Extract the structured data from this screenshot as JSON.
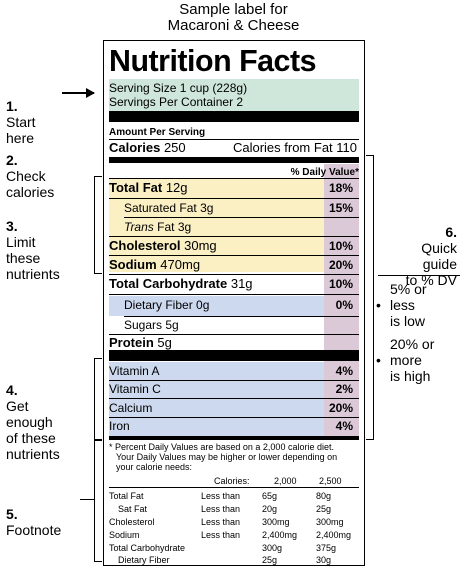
{
  "sample_title": [
    "Sample label for",
    "Macaroni & Cheese"
  ],
  "callouts": {
    "c1": {
      "num": "1.",
      "text": "Start\nhere"
    },
    "c2": {
      "num": "2.",
      "text": "Check\ncalories"
    },
    "c3": {
      "num": "3.",
      "text": "Limit\nthese\nnutrients"
    },
    "c4": {
      "num": "4.",
      "text": "Get\nenough\nof these\nnutrients"
    },
    "c5": {
      "num": "5.",
      "text": "Footnote"
    },
    "c6": {
      "num": "6.",
      "text": "Quick\nguide\nto % DV"
    }
  },
  "quick_guide": [
    {
      "bullet": "•",
      "text": "5% or\nless\nis low"
    },
    {
      "bullet": "•",
      "text": "20% or\nmore\nis high"
    }
  ],
  "label": {
    "title": "Nutrition Facts",
    "serving_size": "Serving Size 1 cup (228g)",
    "servings_per_container": "Servings Per Container 2",
    "amount_per_serving": "Amount Per Serving",
    "calories_label": "Calories",
    "calories_value": "250",
    "calories_from_fat": "Calories from Fat 110",
    "daily_value_header": "% Daily Value*",
    "nutrients": [
      {
        "name": "Total Fat",
        "amount": "12g",
        "dv": "18%"
      },
      {
        "name": "Saturated Fat",
        "amount": "3g",
        "dv": "15%"
      },
      {
        "name": "Trans",
        "amount": "Fat 3g",
        "dv": ""
      },
      {
        "name": "Cholesterol",
        "amount": "30mg",
        "dv": "10%"
      },
      {
        "name": "Sodium",
        "amount": "470mg",
        "dv": "20%"
      },
      {
        "name": "Total Carbohydrate",
        "amount": "31g",
        "dv": "10%"
      },
      {
        "name": "Dietary Fiber",
        "amount": "0g",
        "dv": "0%"
      },
      {
        "name": "Sugars",
        "amount": "5g",
        "dv": ""
      },
      {
        "name": "Protein",
        "amount": "5g",
        "dv": ""
      }
    ],
    "vitamins": [
      {
        "name": "Vitamin A",
        "dv": "4%"
      },
      {
        "name": "Vitamin C",
        "dv": "2%"
      },
      {
        "name": "Calcium",
        "dv": "20%"
      },
      {
        "name": "Iron",
        "dv": "4%"
      }
    ],
    "footnote": [
      "* Percent Daily Values are based on a 2,000 calorie diet.",
      "Your Daily Values may be higher or lower depending on",
      "your calorie needs:"
    ],
    "table_header": {
      "col0": "",
      "col1": "Calories:",
      "col2": "2,000",
      "col3": "2,500"
    },
    "table_rows": [
      {
        "c0": "Total Fat",
        "c1": "Less than",
        "c2": "65g",
        "c3": "80g"
      },
      {
        "c0": "Sat Fat",
        "c1": "Less than",
        "c2": "20g",
        "c3": "25g"
      },
      {
        "c0": "Cholesterol",
        "c1": "Less than",
        "c2": "300mg",
        "c3": "300mg"
      },
      {
        "c0": "Sodium",
        "c1": "Less than",
        "c2": "2,400mg",
        "c3": "2,400mg"
      },
      {
        "c0": "Total Carbohydrate",
        "c1": "",
        "c2": "300g",
        "c3": "375g"
      },
      {
        "c0": "Dietary Fiber",
        "c1": "",
        "c2": "25g",
        "c3": "30g"
      }
    ]
  }
}
